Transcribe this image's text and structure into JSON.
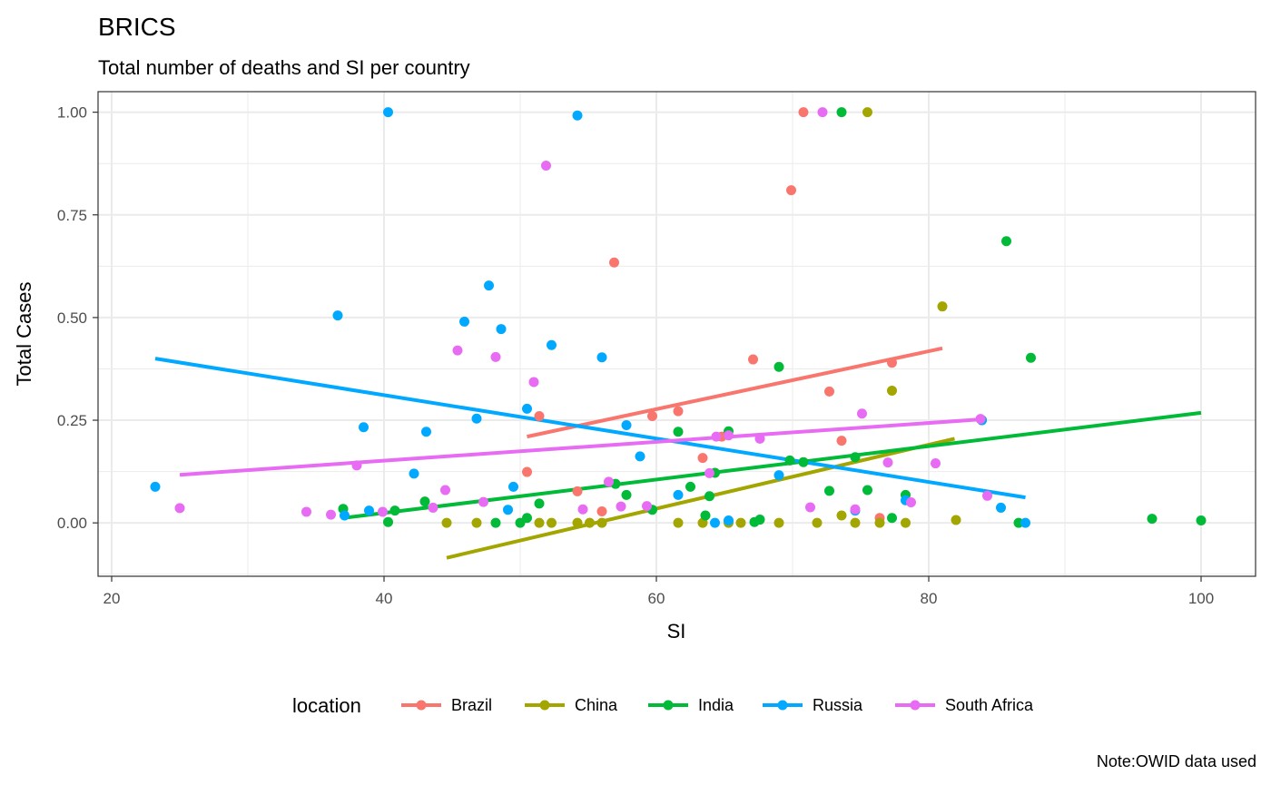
{
  "chart_data": {
    "type": "scatter",
    "title": "BRICS",
    "subtitle": "Total number of deaths and SI per country",
    "xlabel": "SI",
    "ylabel": "Total Cases",
    "caption": "Note:OWID data used",
    "xlim": [
      19,
      104
    ],
    "ylim": [
      -0.13,
      1.05
    ],
    "x_ticks": [
      20,
      40,
      60,
      80,
      100
    ],
    "x_tick_labels": [
      "20",
      "40",
      "60",
      "80",
      "100"
    ],
    "y_ticks": [
      0,
      0.25,
      0.5,
      0.75,
      1.0
    ],
    "y_tick_labels": [
      "0.00",
      "0.25",
      "0.50",
      "0.75",
      "1.00"
    ],
    "grid": true,
    "legend": {
      "title": "location",
      "position": "bottom"
    },
    "series": [
      {
        "name": "Brazil",
        "color": "#F8766D",
        "points": [
          [
            70.8,
            1.0
          ],
          [
            69.9,
            0.81
          ],
          [
            56.9,
            0.634
          ],
          [
            67.1,
            0.398
          ],
          [
            77.3,
            0.39
          ],
          [
            72.7,
            0.32
          ],
          [
            51.4,
            0.26
          ],
          [
            59.7,
            0.26
          ],
          [
            61.6,
            0.272
          ],
          [
            64.8,
            0.21
          ],
          [
            73.6,
            0.2
          ],
          [
            63.4,
            0.158
          ],
          [
            50.5,
            0.124
          ],
          [
            54.2,
            0.077
          ],
          [
            56.0,
            0.028
          ],
          [
            76.4,
            0.012
          ]
        ],
        "trend": [
          [
            50.5,
            0.21
          ],
          [
            81.0,
            0.425
          ]
        ]
      },
      {
        "name": "China",
        "color": "#A3A500",
        "points": [
          [
            75.5,
            1.0
          ],
          [
            81.0,
            0.527
          ],
          [
            77.3,
            0.322
          ],
          [
            44.6,
            0.0
          ],
          [
            46.8,
            0.0
          ],
          [
            51.4,
            0.0
          ],
          [
            52.3,
            0.0
          ],
          [
            54.2,
            0.0
          ],
          [
            55.1,
            0.0
          ],
          [
            56.0,
            0.0
          ],
          [
            61.6,
            0.0
          ],
          [
            63.4,
            0.0
          ],
          [
            65.3,
            0.0
          ],
          [
            66.2,
            0.0
          ],
          [
            69.0,
            0.0
          ],
          [
            71.8,
            0.0
          ],
          [
            74.6,
            0.0
          ],
          [
            76.4,
            0.0
          ],
          [
            78.3,
            0.0
          ],
          [
            73.6,
            0.018
          ],
          [
            82.0,
            0.007
          ]
        ],
        "trend": [
          [
            44.6,
            -0.085
          ],
          [
            81.9,
            0.205
          ]
        ]
      },
      {
        "name": "India",
        "color": "#00BA38",
        "points": [
          [
            73.6,
            1.0
          ],
          [
            85.7,
            0.686
          ],
          [
            87.5,
            0.402
          ],
          [
            69.0,
            0.38
          ],
          [
            83.9,
            0.25
          ],
          [
            65.3,
            0.223
          ],
          [
            61.6,
            0.222
          ],
          [
            69.8,
            0.152
          ],
          [
            70.8,
            0.148
          ],
          [
            74.6,
            0.16
          ],
          [
            64.3,
            0.122
          ],
          [
            62.5,
            0.088
          ],
          [
            57.0,
            0.095
          ],
          [
            75.5,
            0.08
          ],
          [
            72.7,
            0.078
          ],
          [
            57.8,
            0.068
          ],
          [
            63.9,
            0.065
          ],
          [
            78.3,
            0.068
          ],
          [
            51.4,
            0.047
          ],
          [
            43.0,
            0.052
          ],
          [
            37.0,
            0.034
          ],
          [
            40.8,
            0.03
          ],
          [
            59.7,
            0.032
          ],
          [
            63.6,
            0.018
          ],
          [
            50.5,
            0.012
          ],
          [
            67.6,
            0.008
          ],
          [
            77.3,
            0.012
          ],
          [
            96.4,
            0.01
          ],
          [
            100.0,
            0.006
          ],
          [
            40.3,
            0.002
          ],
          [
            48.2,
            0.0
          ],
          [
            50.0,
            0.0
          ],
          [
            67.2,
            0.002
          ],
          [
            86.6,
            0.0
          ]
        ],
        "trend": [
          [
            37.0,
            0.012
          ],
          [
            100.0,
            0.268
          ]
        ]
      },
      {
        "name": "Russia",
        "color": "#00A9FF",
        "points": [
          [
            40.3,
            1.0
          ],
          [
            54.2,
            0.992
          ],
          [
            47.7,
            0.578
          ],
          [
            36.6,
            0.505
          ],
          [
            45.9,
            0.49
          ],
          [
            48.6,
            0.472
          ],
          [
            52.3,
            0.433
          ],
          [
            56.0,
            0.403
          ],
          [
            50.5,
            0.278
          ],
          [
            46.8,
            0.254
          ],
          [
            57.8,
            0.238
          ],
          [
            38.5,
            0.233
          ],
          [
            43.1,
            0.222
          ],
          [
            58.8,
            0.162
          ],
          [
            42.2,
            0.12
          ],
          [
            69.0,
            0.116
          ],
          [
            83.9,
            0.25
          ],
          [
            49.5,
            0.088
          ],
          [
            23.2,
            0.088
          ],
          [
            61.6,
            0.068
          ],
          [
            49.1,
            0.032
          ],
          [
            74.6,
            0.03
          ],
          [
            78.3,
            0.055
          ],
          [
            85.3,
            0.037
          ],
          [
            38.9,
            0.03
          ],
          [
            37.1,
            0.018
          ],
          [
            64.3,
            0.0
          ],
          [
            65.3,
            0.006
          ],
          [
            87.1,
            0.0
          ]
        ],
        "trend": [
          [
            23.2,
            0.4
          ],
          [
            87.1,
            0.062
          ]
        ]
      },
      {
        "name": "South Africa",
        "color": "#E76BF3",
        "points": [
          [
            72.2,
            1.0
          ],
          [
            51.9,
            0.87
          ],
          [
            45.4,
            0.42
          ],
          [
            48.2,
            0.404
          ],
          [
            51.0,
            0.343
          ],
          [
            75.1,
            0.266
          ],
          [
            83.8,
            0.253
          ],
          [
            64.4,
            0.21
          ],
          [
            67.6,
            0.205
          ],
          [
            65.3,
            0.213
          ],
          [
            77.0,
            0.147
          ],
          [
            80.5,
            0.145
          ],
          [
            38.0,
            0.14
          ],
          [
            63.9,
            0.121
          ],
          [
            44.5,
            0.08
          ],
          [
            84.3,
            0.066
          ],
          [
            78.7,
            0.05
          ],
          [
            47.3,
            0.051
          ],
          [
            56.5,
            0.1
          ],
          [
            59.3,
            0.041
          ],
          [
            57.4,
            0.04
          ],
          [
            43.6,
            0.037
          ],
          [
            54.6,
            0.033
          ],
          [
            71.3,
            0.038
          ],
          [
            74.6,
            0.033
          ],
          [
            25.0,
            0.036
          ],
          [
            34.3,
            0.027
          ],
          [
            39.9,
            0.027
          ],
          [
            36.1,
            0.02
          ]
        ],
        "trend": [
          [
            25.0,
            0.117
          ],
          [
            83.8,
            0.252
          ]
        ]
      }
    ]
  }
}
